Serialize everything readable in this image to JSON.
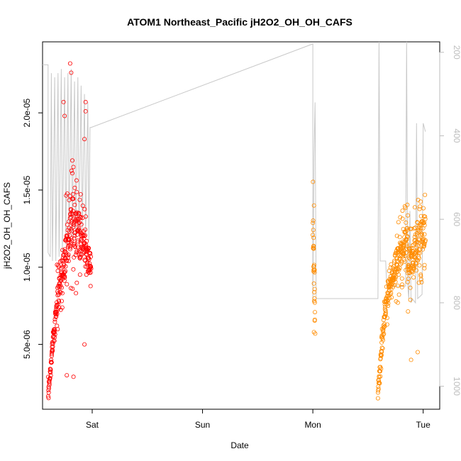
{
  "chart_data": {
    "type": "scatter",
    "title": "ATOM1 Northeast_Pacific jH2O2_OH_OH_CAFS",
    "xlabel": "Date",
    "ylabel": "jH2O2_OH_OH_CAFS",
    "x_axis": {
      "type": "date",
      "ticks": [
        "Sat",
        "Sun",
        "Mon",
        "Tue"
      ],
      "range_days": [
        -0.45,
        3.15
      ]
    },
    "y_axis": {
      "ticks": [
        "5.0e-06",
        "1.0e-05",
        "1.5e-05",
        "2.0e-05"
      ],
      "tick_values": [
        5e-06,
        1e-05,
        1.5e-05,
        2e-05
      ],
      "range": [
        8e-07,
        2.46e-05
      ]
    },
    "y2_axis": {
      "ticks": [
        "200",
        "400",
        "600",
        "800",
        "1000"
      ],
      "tick_values": [
        200,
        400,
        600,
        800,
        1000
      ],
      "range": [
        1055,
        175
      ],
      "reversed": true
    },
    "colors": {
      "series1": "#ff0000",
      "series2": "#ff8c00",
      "pressure_line": "#c8c8c8",
      "axis": "#000000",
      "axis2": "#bdbdbd"
    },
    "series": [
      {
        "color": "#ff0000",
        "segments": [
          {
            "x_start": -0.4,
            "x_end": -0.32,
            "y_base_start": 1.8e-06,
            "y_base_end": 7.8e-06,
            "spread": 1.2e-06
          },
          {
            "x_start": -0.32,
            "x_end": -0.25,
            "y_base_start": 7.8e-06,
            "y_base_end": 1.05e-05,
            "spread": 2.5e-06
          },
          {
            "x_start": -0.25,
            "x_end": -0.18,
            "y_base_start": 1.05e-05,
            "y_base_end": 1.3e-05,
            "spread": 4e-06
          },
          {
            "x_start": -0.18,
            "x_end": -0.1,
            "y_base_start": 1.3e-05,
            "y_base_end": 1.2e-05,
            "spread": 4.5e-06
          },
          {
            "x_start": -0.1,
            "x_end": -0.01,
            "y_base_start": 1.2e-05,
            "y_base_end": 1e-05,
            "spread": 2.5e-06
          }
        ],
        "extremes": [
          {
            "x": -0.26,
            "y": 2.07e-05
          },
          {
            "x": -0.25,
            "y": 1.98e-05
          },
          {
            "x": -0.2,
            "y": 2.32e-05
          },
          {
            "x": -0.19,
            "y": 2.26e-05
          },
          {
            "x": -0.06,
            "y": 2.07e-05
          },
          {
            "x": -0.06,
            "y": 2.01e-05
          },
          {
            "x": -0.07,
            "y": 1.83e-05
          },
          {
            "x": -0.23,
            "y": 3e-06
          },
          {
            "x": -0.17,
            "y": 2.9e-06
          },
          {
            "x": -0.07,
            "y": 5e-06
          }
        ]
      },
      {
        "color": "#ff8c00",
        "segments": [
          {
            "x_start": 2.0,
            "x_end": 2.02,
            "y_base_start": 1.3e-05,
            "y_base_end": 6e-06,
            "spread": 3e-06
          },
          {
            "x_start": 2.59,
            "x_end": 2.65,
            "y_base_start": 2e-06,
            "y_base_end": 7e-06,
            "spread": 1e-06
          },
          {
            "x_start": 2.65,
            "x_end": 2.74,
            "y_base_start": 7e-06,
            "y_base_end": 1e-05,
            "spread": 1.5e-06
          },
          {
            "x_start": 2.74,
            "x_end": 2.86,
            "y_base_start": 1e-05,
            "y_base_end": 1.2e-05,
            "spread": 2.5e-06
          },
          {
            "x_start": 2.86,
            "x_end": 3.02,
            "y_base_start": 1e-05,
            "y_base_end": 1.25e-05,
            "spread": 3e-06
          }
        ],
        "extremes": [
          {
            "x": 2.01,
            "y": 1.4e-05
          },
          {
            "x": 2.01,
            "y": 5.8e-06
          },
          {
            "x": 2.77,
            "y": 7.7e-06
          },
          {
            "x": 2.89,
            "y": 4e-06
          },
          {
            "x": 2.95,
            "y": 4.5e-06
          },
          {
            "x": 3.01,
            "y": 1.29e-05
          }
        ]
      }
    ],
    "pressure_line": [
      [
        -0.45,
        230
      ],
      [
        -0.4,
        230
      ],
      [
        -0.4,
        680
      ],
      [
        -0.38,
        690
      ],
      [
        -0.37,
        250
      ],
      [
        -0.36,
        700
      ],
      [
        -0.34,
        260
      ],
      [
        -0.33,
        700
      ],
      [
        -0.31,
        250
      ],
      [
        -0.3,
        690
      ],
      [
        -0.28,
        240
      ],
      [
        -0.27,
        680
      ],
      [
        -0.25,
        260
      ],
      [
        -0.24,
        660
      ],
      [
        -0.22,
        250
      ],
      [
        -0.21,
        650
      ],
      [
        -0.19,
        240
      ],
      [
        -0.18,
        640
      ],
      [
        -0.16,
        270
      ],
      [
        -0.15,
        650
      ],
      [
        -0.13,
        260
      ],
      [
        -0.12,
        640
      ],
      [
        -0.1,
        280
      ],
      [
        -0.09,
        630
      ],
      [
        -0.07,
        300
      ],
      [
        -0.06,
        640
      ],
      [
        -0.04,
        320
      ],
      [
        -0.03,
        650
      ],
      [
        -0.02,
        380
      ],
      [
        -0.01,
        380
      ],
      [
        2.0,
        180
      ],
      [
        2.0,
        800
      ],
      [
        2.01,
        450
      ],
      [
        2.02,
        320
      ],
      [
        2.03,
        790
      ],
      [
        2.59,
        790
      ],
      [
        2.6,
        175
      ],
      [
        2.61,
        700
      ],
      [
        2.66,
        700
      ],
      [
        2.67,
        760
      ],
      [
        2.84,
        760
      ],
      [
        2.85,
        175
      ],
      [
        2.86,
        760
      ],
      [
        2.87,
        790
      ],
      [
        2.88,
        580
      ],
      [
        2.89,
        800
      ],
      [
        2.9,
        790
      ],
      [
        2.93,
        800
      ],
      [
        2.94,
        370
      ],
      [
        2.95,
        790
      ],
      [
        2.99,
        780
      ],
      [
        3.0,
        370
      ],
      [
        3.02,
        390
      ]
    ]
  }
}
